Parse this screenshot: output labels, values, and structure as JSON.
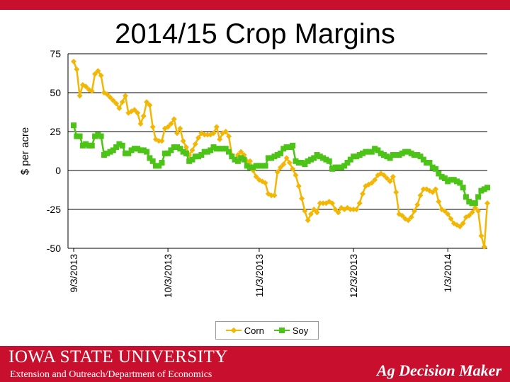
{
  "chart_data": {
    "type": "line",
    "title": "2014/15 Crop Margins",
    "ylabel": "$ per acre",
    "xlabel": "",
    "ylim": [
      -50,
      75
    ],
    "yticks": [
      75,
      50,
      25,
      0,
      -25,
      -50
    ],
    "x_tick_labels": [
      "9/3/2013",
      "10/3/2013",
      "11/3/2013",
      "12/3/2013",
      "1/3/2014"
    ],
    "grid": true,
    "legend_position": "bottom",
    "series": [
      {
        "name": "Corn",
        "color": "#f2b705",
        "marker": "diamond",
        "x": [
          0,
          1,
          2,
          3,
          4,
          5,
          6,
          7,
          8,
          9,
          10,
          11,
          12,
          13,
          14,
          15,
          16,
          17,
          18,
          19,
          20,
          21,
          22,
          23,
          24,
          25,
          26,
          27,
          28,
          29,
          30,
          31,
          32,
          33,
          34,
          35,
          36,
          37,
          38,
          39,
          40,
          41,
          42,
          43,
          44,
          45,
          46,
          47,
          48,
          49,
          50,
          51,
          52,
          53,
          54,
          55,
          56,
          57,
          58,
          59,
          60,
          61,
          62,
          63,
          64,
          65,
          66,
          67,
          68,
          69,
          70,
          71,
          72,
          73,
          74,
          75,
          76,
          77,
          78,
          79,
          80,
          81,
          82,
          83,
          84,
          85,
          86,
          87,
          88,
          89,
          90,
          91,
          92,
          93,
          94,
          95,
          96,
          97,
          98,
          99,
          100,
          101,
          102,
          103,
          104,
          105,
          106,
          107,
          108,
          109,
          110,
          111,
          112,
          113,
          114,
          115,
          116,
          117,
          118,
          119,
          120,
          121,
          122,
          123,
          124,
          125,
          126,
          127,
          128,
          129,
          130,
          131,
          132,
          133,
          134,
          135,
          136
        ],
        "values": [
          70,
          65,
          48,
          55,
          54,
          52,
          51,
          62,
          64,
          61,
          50,
          49,
          47,
          45,
          43,
          40,
          44,
          48,
          37,
          38,
          39,
          37,
          30,
          35,
          44,
          42,
          28,
          20,
          19,
          19,
          27,
          28,
          30,
          33,
          24,
          27,
          19,
          15,
          10,
          13,
          17,
          21,
          24,
          23,
          23,
          23,
          24,
          28,
          20,
          24,
          25,
          22,
          10,
          7,
          10,
          12,
          10,
          6,
          6,
          0,
          -4,
          -6,
          -7,
          -8,
          -15,
          -16,
          -16,
          -1,
          2,
          4,
          8,
          5,
          1,
          -3,
          -10,
          -18,
          -26,
          -32,
          -28,
          -25,
          -27,
          -21,
          -21,
          -21,
          -20,
          -21,
          -25,
          -27,
          -24,
          -25,
          -24,
          -25,
          -25,
          -25,
          -21,
          -15,
          -10,
          -9,
          -8,
          -6,
          -3,
          -2,
          -3,
          -5,
          -7,
          -4,
          -14,
          -28,
          -29,
          -31,
          -32,
          -30,
          -26,
          -22,
          -16,
          -12,
          -12,
          -13,
          -14,
          -12,
          -20,
          -25,
          -26,
          -28,
          -31,
          -34,
          -35,
          -36,
          -34,
          -30,
          -29,
          -27,
          -24,
          -26,
          -42,
          -49,
          -21
        ],
        "values_note": ""
      },
      {
        "name": "Soy",
        "color": "#4cc417",
        "marker": "square",
        "x": [
          0,
          1,
          2,
          3,
          4,
          5,
          6,
          7,
          8,
          9,
          10,
          11,
          12,
          13,
          14,
          15,
          16,
          17,
          18,
          19,
          20,
          21,
          22,
          23,
          24,
          25,
          26,
          27,
          28,
          29,
          30,
          31,
          32,
          33,
          34,
          35,
          36,
          37,
          38,
          39,
          40,
          41,
          42,
          43,
          44,
          45,
          46,
          47,
          48,
          49,
          50,
          51,
          52,
          53,
          54,
          55,
          56,
          57,
          58,
          59,
          60,
          61,
          62,
          63,
          64,
          65,
          66,
          67,
          68,
          69,
          70,
          71,
          72,
          73,
          74,
          75,
          76,
          77,
          78,
          79,
          80,
          81,
          82,
          83,
          84,
          85,
          86,
          87,
          88,
          89,
          90,
          91,
          92,
          93,
          94,
          95,
          96,
          97,
          98,
          99,
          100,
          101,
          102,
          103,
          104,
          105,
          106,
          107,
          108,
          109,
          110,
          111,
          112,
          113,
          114,
          115,
          116,
          117,
          118,
          119,
          120,
          121,
          122,
          123,
          124,
          125,
          126,
          127,
          128,
          129,
          130,
          131,
          132,
          133,
          134,
          135,
          136
        ],
        "values": [
          29,
          22,
          22,
          16,
          17,
          16,
          16,
          22,
          23,
          22,
          10,
          11,
          12,
          13,
          15,
          17,
          16,
          11,
          11,
          13,
          14,
          14,
          13,
          13,
          12,
          8,
          6,
          3,
          3,
          5,
          11,
          11,
          13,
          15,
          15,
          14,
          12,
          11,
          6,
          7,
          9,
          9,
          10,
          12,
          12,
          13,
          15,
          14,
          14,
          14,
          14,
          12,
          9,
          7,
          6,
          8,
          7,
          3,
          2,
          2,
          3,
          3,
          3,
          3,
          8,
          8,
          9,
          10,
          11,
          14,
          15,
          15,
          16,
          6,
          5,
          5,
          4,
          6,
          7,
          8,
          10,
          9,
          8,
          7,
          6,
          1,
          2,
          2,
          2,
          3,
          5,
          7,
          9,
          9,
          10,
          11,
          12,
          12,
          12,
          14,
          13,
          11,
          10,
          9,
          8,
          10,
          10,
          10,
          11,
          12,
          12,
          11,
          10,
          10,
          9,
          7,
          5,
          5,
          2,
          1,
          -2,
          -4,
          -5,
          -7,
          -6,
          -6,
          -7,
          -8,
          -11,
          -17,
          -20,
          -21,
          -21,
          -17,
          -13,
          -12,
          -11
        ],
        "values_note": ""
      }
    ]
  },
  "legend": {
    "corn_label": "Corn",
    "soy_label": "Soy"
  },
  "footer": {
    "university": "IOWA STATE UNIVERSITY",
    "department": "Extension and Outreach/Department of Economics",
    "brand": "Ag Decision Maker"
  },
  "colors": {
    "accent": "#c8102e",
    "corn": "#f2b705",
    "soy": "#4cc417"
  }
}
